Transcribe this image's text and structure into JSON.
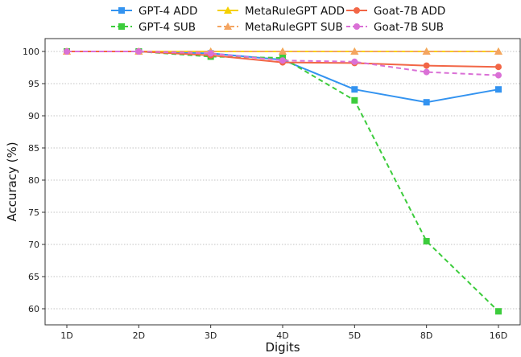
{
  "chart_data": {
    "type": "line",
    "title": "",
    "xlabel": "Digits",
    "ylabel": "Accuracy (%)",
    "categories": [
      "1D",
      "2D",
      "3D",
      "4D",
      "5D",
      "8D",
      "16D"
    ],
    "ylim": [
      57.5,
      102
    ],
    "yticks": [
      60,
      65,
      70,
      75,
      80,
      85,
      90,
      95,
      100
    ],
    "grid": "horizontal dotted",
    "legend_placement": "top-center",
    "series": [
      {
        "name": "GPT-4 ADD",
        "values": [
          100,
          100,
          99.7,
          98.7,
          94.1,
          92.1,
          94.1
        ],
        "color": "#3393f0",
        "dash": "solid",
        "marker": "square"
      },
      {
        "name": "GPT-4 SUB",
        "values": [
          100,
          100,
          99.2,
          99.0,
          92.4,
          70.5,
          59.6
        ],
        "color": "#3ccc3c",
        "dash": "dashed",
        "marker": "square"
      },
      {
        "name": "MetaRuleGPT ADD",
        "values": [
          100,
          100,
          100,
          100,
          100,
          100,
          100
        ],
        "color": "#f5d000",
        "dash": "solid",
        "marker": "triangle"
      },
      {
        "name": "MetaRuleGPT SUB",
        "values": [
          100,
          100,
          100,
          100,
          100,
          100,
          100
        ],
        "color": "#f4a460",
        "dash": "dashed",
        "marker": "triangle"
      },
      {
        "name": "Goat-7B ADD",
        "values": [
          100,
          100,
          99.4,
          98.3,
          98.2,
          97.8,
          97.6
        ],
        "color": "#f26646",
        "dash": "solid",
        "marker": "circle"
      },
      {
        "name": "Goat-7B SUB",
        "values": [
          100,
          100,
          99.7,
          98.6,
          98.4,
          96.8,
          96.3
        ],
        "color": "#da70d6",
        "dash": "dashed",
        "marker": "circle"
      }
    ]
  }
}
